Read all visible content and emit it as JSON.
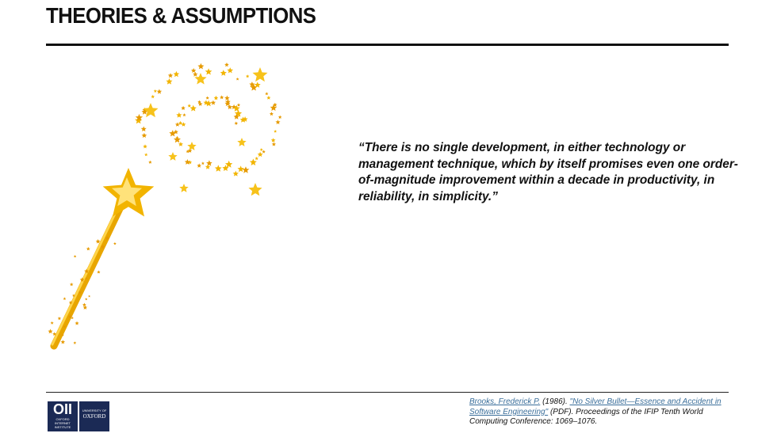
{
  "header": {
    "title": "THEORIES & ASSUMPTIONS"
  },
  "quote": "“There is no single development, in either technology or management technique, which by itself promises even one order-of-magnitude improvement within a decade in productivity, in reliability, in simplicity.”",
  "citation": {
    "author": "Brooks, Frederick P.",
    "year": "(1986).",
    "title": "\"No Silver Bullet—Essence and Accident in Software Engineering\"",
    "rest": "(PDF). Proceedings of the IFIP Tenth World Computing Conference: 1069–1076."
  },
  "logos": {
    "oii": "OXFORD INTERNET INSTITUTE",
    "oxford_top": "UNIVERSITY OF",
    "oxford": "OXFORD"
  }
}
